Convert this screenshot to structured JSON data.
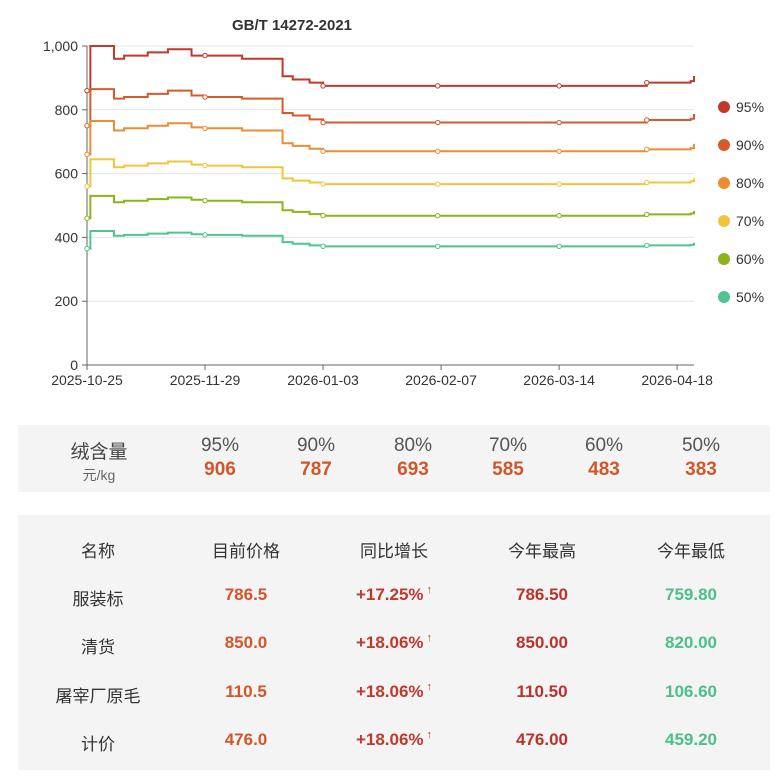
{
  "chart_data": {
    "type": "line",
    "title": "GB/T 14272-2021",
    "xlabel": "",
    "ylabel": "",
    "ylim": [
      0,
      1000
    ],
    "y_ticks": [
      "0",
      "200",
      "400",
      "600",
      "800",
      "1,000"
    ],
    "y_tick_values": [
      0,
      200,
      400,
      600,
      800,
      1000
    ],
    "x_tick_labels": [
      "2025-10-25",
      "2025-11-29",
      "2026-01-03",
      "2026-02-07",
      "2026-03-14",
      "2026-04-18"
    ],
    "x_tick_days": [
      0,
      35,
      70,
      105,
      140,
      175
    ],
    "x_max_day": 180,
    "step": true,
    "series": [
      {
        "name": "95%",
        "color": "#c0392b",
        "x": [
          0,
          1,
          8,
          11,
          18,
          24,
          31,
          35,
          46,
          57,
          58,
          61,
          66,
          70,
          104,
          140,
          166,
          179,
          180
        ],
        "values": [
          860,
          1000,
          960,
          970,
          980,
          990,
          970,
          970,
          960,
          960,
          905,
          895,
          885,
          875,
          875,
          875,
          885,
          890,
          906
        ]
      },
      {
        "name": "90%",
        "color": "#d65a2a",
        "x": [
          0,
          1,
          8,
          11,
          18,
          24,
          31,
          35,
          46,
          57,
          58,
          61,
          66,
          70,
          104,
          140,
          166,
          179,
          180
        ],
        "values": [
          750,
          865,
          835,
          840,
          850,
          860,
          845,
          840,
          835,
          835,
          790,
          782,
          770,
          760,
          760,
          760,
          768,
          772,
          787
        ]
      },
      {
        "name": "80%",
        "color": "#ec8d34",
        "x": [
          0,
          1,
          8,
          11,
          18,
          24,
          31,
          35,
          46,
          57,
          58,
          61,
          66,
          70,
          104,
          140,
          166,
          179,
          180
        ],
        "values": [
          660,
          765,
          735,
          742,
          750,
          758,
          745,
          742,
          735,
          735,
          695,
          687,
          678,
          670,
          670,
          670,
          676,
          680,
          693
        ]
      },
      {
        "name": "70%",
        "color": "#f0c53c",
        "x": [
          0,
          1,
          8,
          11,
          18,
          24,
          31,
          35,
          46,
          57,
          58,
          61,
          66,
          70,
          104,
          140,
          166,
          179,
          180
        ],
        "values": [
          560,
          645,
          620,
          625,
          632,
          638,
          628,
          625,
          620,
          620,
          585,
          578,
          572,
          567,
          567,
          567,
          572,
          576,
          585
        ]
      },
      {
        "name": "60%",
        "color": "#8ab51a",
        "x": [
          0,
          1,
          8,
          11,
          18,
          24,
          31,
          35,
          46,
          57,
          58,
          61,
          66,
          70,
          104,
          140,
          166,
          179,
          180
        ],
        "values": [
          460,
          530,
          510,
          515,
          520,
          525,
          518,
          515,
          510,
          510,
          485,
          480,
          473,
          468,
          468,
          468,
          472,
          475,
          483
        ]
      },
      {
        "name": "50%",
        "color": "#4ec58f",
        "x": [
          0,
          1,
          8,
          11,
          18,
          24,
          31,
          35,
          46,
          57,
          58,
          61,
          66,
          70,
          104,
          140,
          166,
          179,
          180
        ],
        "values": [
          365,
          420,
          405,
          408,
          412,
          415,
          410,
          408,
          405,
          405,
          385,
          380,
          375,
          372,
          372,
          372,
          375,
          377,
          383
        ]
      }
    ]
  },
  "summary": {
    "label": "绒含量",
    "unit": "元/kg",
    "items": [
      {
        "pct": "95%",
        "value": "906"
      },
      {
        "pct": "90%",
        "value": "787"
      },
      {
        "pct": "80%",
        "value": "693"
      },
      {
        "pct": "70%",
        "value": "585"
      },
      {
        "pct": "60%",
        "value": "483"
      },
      {
        "pct": "50%",
        "value": "383"
      }
    ]
  },
  "table": {
    "headers": [
      "名称",
      "目前价格",
      "同比增长",
      "今年最高",
      "今年最低"
    ],
    "arrow": "↑",
    "rows": [
      {
        "name": "服装标",
        "price": "786.5",
        "growth": "+17.25%",
        "high": "786.50",
        "low": "759.80"
      },
      {
        "name": "清货",
        "price": "850.0",
        "growth": "+18.06%",
        "high": "850.00",
        "low": "820.00"
      },
      {
        "name": "屠宰厂原毛",
        "price": "110.5",
        "growth": "+18.06%",
        "high": "110.50",
        "low": "106.60"
      },
      {
        "name": "计价",
        "price": "476.0",
        "growth": "+18.06%",
        "high": "476.00",
        "low": "459.20"
      }
    ]
  }
}
